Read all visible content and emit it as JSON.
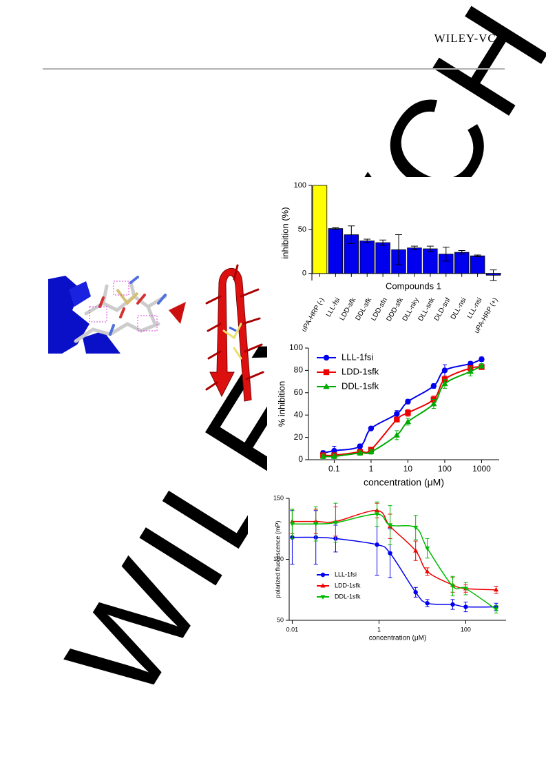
{
  "header": {
    "brand": "WILEY-VCH"
  },
  "watermark": "WILEY-VCH",
  "chart_data": [
    {
      "type": "bar",
      "categories": [
        "uPA-HRP (-)",
        "LLL-fsi",
        "LDD-sfk",
        "DDL-sfk",
        "LDD-sfn",
        "DDD-sfk",
        "DLL-nky",
        "DLL-snk",
        "DLD-snf",
        "DLL-nsi",
        "LLL-nsi",
        "uPA-HRP (+)"
      ],
      "values": [
        100,
        51,
        44,
        37,
        35,
        27,
        29,
        28,
        22,
        24,
        20,
        -2
      ],
      "errors": [
        0,
        1,
        10,
        2,
        3,
        17,
        2,
        3,
        8,
        2,
        1,
        6
      ],
      "colors": [
        "#ffff00",
        "#0000ee",
        "#0000ee",
        "#0000ee",
        "#0000ee",
        "#0000ee",
        "#0000ee",
        "#0000ee",
        "#0000ee",
        "#0000ee",
        "#0000ee",
        "#0000ee"
      ],
      "xlabel": "Compounds 1",
      "ylabel": "inhibition (%)",
      "ylim": [
        -8,
        100
      ],
      "yticks": [
        0,
        50,
        100
      ]
    },
    {
      "type": "scatter",
      "fit": true,
      "xscale": "log",
      "legend": "upper-left",
      "x": [
        0.05,
        0.1,
        0.5,
        1,
        5,
        10,
        50,
        100,
        500,
        1000
      ],
      "series": [
        {
          "name": "LLL-1fsi",
          "color": "#0000ee",
          "marker": "circle",
          "values": [
            6,
            8,
            12,
            28,
            41,
            52,
            66,
            80,
            86,
            90
          ],
          "errors": [
            2,
            4,
            2,
            1,
            3,
            2,
            2,
            5,
            2,
            2
          ]
        },
        {
          "name": "LDD-1sfk",
          "color": "#ee0000",
          "marker": "square",
          "values": [
            4,
            4,
            7,
            9,
            36,
            42,
            54,
            72,
            82,
            83
          ],
          "errors": [
            2,
            2,
            2,
            2,
            2,
            3,
            3,
            3,
            2,
            2
          ]
        },
        {
          "name": "DDL-1sfk",
          "color": "#00aa00",
          "marker": "triangle-up",
          "values": [
            3,
            3,
            6,
            7,
            22,
            34,
            50,
            68,
            79,
            84
          ],
          "errors": [
            2,
            2,
            2,
            2,
            4,
            3,
            4,
            4,
            4,
            2
          ]
        }
      ],
      "xlabel": "concentration (μM)",
      "ylabel": "% inhibition",
      "xlim": [
        0.02,
        3000
      ],
      "xticks": [
        0.1,
        1,
        10,
        100,
        1000
      ],
      "ylim": [
        0,
        100
      ],
      "yticks": [
        0,
        20,
        40,
        60,
        80,
        100
      ]
    },
    {
      "type": "scatter",
      "fit": true,
      "xscale": "log",
      "legend": "lower-left",
      "x": [
        0.01,
        0.035,
        0.1,
        0.9,
        1.8,
        7,
        13,
        50,
        100,
        500
      ],
      "series": [
        {
          "name": "LLL-1fsi",
          "color": "#0000ee",
          "marker": "circle",
          "values": [
            118,
            118,
            117,
            112,
            105,
            73,
            64,
            63,
            61,
            61
          ],
          "errors": [
            22,
            22,
            11,
            25,
            20,
            4,
            3,
            4,
            4,
            3
          ]
        },
        {
          "name": "LDD-1sfk",
          "color": "#ee0000",
          "marker": "triangle-up",
          "values": [
            131,
            131,
            131,
            140,
            127,
            107,
            90,
            79,
            76,
            75
          ],
          "errors": [
            10,
            10,
            12,
            6,
            10,
            8,
            3,
            6,
            3,
            3
          ]
        },
        {
          "name": "DDL-1sfk",
          "color": "#00bb00",
          "marker": "triangle-down",
          "values": [
            129,
            129,
            130,
            137,
            128,
            126,
            109,
            78,
            76,
            59
          ],
          "errors": [
            12,
            14,
            16,
            10,
            16,
            10,
            8,
            8,
            5,
            3
          ]
        }
      ],
      "xlabel": "concentration (μM)",
      "ylabel": "polarized fluorescence (mP)",
      "xlim": [
        0.0085,
        850
      ],
      "xticks": [
        0.01,
        1,
        100
      ],
      "ylim": [
        50,
        150
      ],
      "yticks": [
        50,
        100,
        150
      ]
    }
  ]
}
